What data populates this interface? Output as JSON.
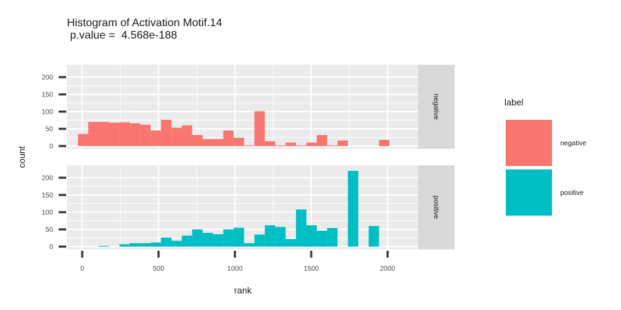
{
  "chart_data": {
    "type": "bar",
    "title": "Histogram of Activation Motif.14",
    "subtitle": " p.value =  4.568e-188",
    "xlabel": "rank",
    "ylabel": "count",
    "xlim": [
      -100,
      2200
    ],
    "ylim": [
      0,
      220
    ],
    "x_ticks": [
      0,
      500,
      1000,
      1500,
      2000
    ],
    "y_ticks": [
      0,
      50,
      100,
      150,
      200
    ],
    "bin_width": 68,
    "grid": true,
    "legend": {
      "title": "label",
      "position": "right",
      "entries": [
        {
          "label": "negative",
          "color": "#F8766D"
        },
        {
          "label": "positive",
          "color": "#00BFC4"
        }
      ]
    },
    "panels": [
      {
        "label": "negative",
        "color": "#F8766D",
        "bins": [
          {
            "x": -28,
            "count": 35
          },
          {
            "x": 40,
            "count": 70
          },
          {
            "x": 108,
            "count": 70
          },
          {
            "x": 176,
            "count": 68
          },
          {
            "x": 244,
            "count": 69
          },
          {
            "x": 312,
            "count": 66
          },
          {
            "x": 380,
            "count": 62
          },
          {
            "x": 448,
            "count": 45
          },
          {
            "x": 516,
            "count": 76
          },
          {
            "x": 584,
            "count": 53
          },
          {
            "x": 652,
            "count": 60
          },
          {
            "x": 720,
            "count": 32
          },
          {
            "x": 788,
            "count": 20
          },
          {
            "x": 856,
            "count": 20
          },
          {
            "x": 924,
            "count": 45
          },
          {
            "x": 992,
            "count": 24
          },
          {
            "x": 1060,
            "count": 2
          },
          {
            "x": 1128,
            "count": 101
          },
          {
            "x": 1196,
            "count": 14
          },
          {
            "x": 1264,
            "count": 2
          },
          {
            "x": 1332,
            "count": 10
          },
          {
            "x": 1400,
            "count": 2
          },
          {
            "x": 1468,
            "count": 10
          },
          {
            "x": 1536,
            "count": 32
          },
          {
            "x": 1604,
            "count": 2
          },
          {
            "x": 1672,
            "count": 16
          },
          {
            "x": 1740,
            "count": 0
          },
          {
            "x": 1808,
            "count": 0
          },
          {
            "x": 1876,
            "count": 0
          },
          {
            "x": 1944,
            "count": 18
          }
        ]
      },
      {
        "label": "positive",
        "color": "#00BFC4",
        "bins": [
          {
            "x": -28,
            "count": 0
          },
          {
            "x": 40,
            "count": 0
          },
          {
            "x": 108,
            "count": 2
          },
          {
            "x": 176,
            "count": 0
          },
          {
            "x": 244,
            "count": 7
          },
          {
            "x": 312,
            "count": 10
          },
          {
            "x": 380,
            "count": 10
          },
          {
            "x": 448,
            "count": 12
          },
          {
            "x": 516,
            "count": 26
          },
          {
            "x": 584,
            "count": 17
          },
          {
            "x": 652,
            "count": 32
          },
          {
            "x": 720,
            "count": 50
          },
          {
            "x": 788,
            "count": 40
          },
          {
            "x": 856,
            "count": 36
          },
          {
            "x": 924,
            "count": 50
          },
          {
            "x": 992,
            "count": 55
          },
          {
            "x": 1060,
            "count": 10
          },
          {
            "x": 1128,
            "count": 35
          },
          {
            "x": 1196,
            "count": 62
          },
          {
            "x": 1264,
            "count": 57
          },
          {
            "x": 1332,
            "count": 22
          },
          {
            "x": 1400,
            "count": 108
          },
          {
            "x": 1468,
            "count": 62
          },
          {
            "x": 1536,
            "count": 46
          },
          {
            "x": 1604,
            "count": 54
          },
          {
            "x": 1672,
            "count": 0
          },
          {
            "x": 1740,
            "count": 220
          },
          {
            "x": 1808,
            "count": 0
          },
          {
            "x": 1876,
            "count": 60
          },
          {
            "x": 1944,
            "count": 0
          }
        ]
      }
    ]
  }
}
